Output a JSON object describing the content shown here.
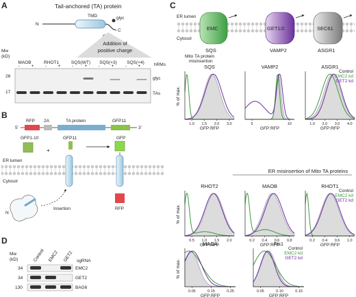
{
  "panel_labels": {
    "a": "A",
    "b": "B",
    "c": "C",
    "d": "D"
  },
  "panel_a": {
    "title": "Tail-anchored (TA) protein",
    "tmd": "TMD",
    "glyc": "glyc",
    "ctd": "CTD",
    "n": "N",
    "c": "C",
    "charge_note": "Addition of positive charge",
    "mw": "Mw",
    "kd": "(kD)",
    "lanes": [
      "MAOB",
      "RHOT1",
      "SQS(WT)",
      "SQS(+3)",
      "SQS(+4)"
    ],
    "hrms_label": "hRMs",
    "hrms_signs": [
      "-",
      "+",
      "-",
      "+",
      "-",
      "+",
      "-",
      "+",
      "-",
      "+"
    ],
    "markers": [
      "26",
      "17"
    ],
    "band_labels": [
      "glyc",
      "TAs"
    ]
  },
  "panel_b": {
    "construct": [
      "RFP",
      "2A",
      "TA protein",
      "GFP11"
    ],
    "five": "5'",
    "three": "3'",
    "gfp1_10": "GFP1-10",
    "gfp11": "GFP11",
    "gfp": "GFP",
    "plus": "+",
    "er_lumen": "ER lumen",
    "cytosol": "Cytosol",
    "insertion": "Insertion",
    "rfp": "RFP",
    "n": "N"
  },
  "panel_c_top": {
    "er_lumen": "ER lumen",
    "cytosol": "Cytosol",
    "complexes": [
      "EMC",
      "GET1/2",
      "SEC61"
    ],
    "substrates": [
      "SQS",
      "VAMP2",
      "ASGR1"
    ],
    "misinsertion_note": "Mito TA protein misinsertion"
  },
  "panel_c_plots": {
    "ylabel": "% of max.",
    "xlabel": "GFP:RFP",
    "legend": [
      "Control",
      "EMC2 kd",
      "GET2 kd"
    ],
    "section_title": "ER misinsertion of Mito TA proteins",
    "colors": {
      "control": "#a99fbf",
      "emc": "#3a9a3a",
      "get": "#6a2f9a"
    },
    "plots": [
      {
        "title": "SQS",
        "ticks": [
          "1.0",
          "1.5",
          "2.0",
          "3.0"
        ],
        "has_legend": false
      },
      {
        "title": "VAMP2",
        "ticks": [
          "5",
          "10"
        ],
        "has_legend": false
      },
      {
        "title": "ASGR1",
        "ticks": [
          "1.0",
          "2.0",
          "3.0",
          "4.0"
        ],
        "has_legend": true
      },
      {
        "title": "RHOT2",
        "ticks": [
          "0.5",
          "1.0",
          "1.5",
          "2.0"
        ],
        "has_legend": false
      },
      {
        "title": "MAOB",
        "ticks": [
          "0.2",
          "0.4",
          "0.6",
          "0.8"
        ],
        "has_legend": false
      },
      {
        "title": "RHOT1",
        "ticks": [
          "0.2",
          "0.4",
          "0.6",
          "1.0"
        ],
        "has_legend": true
      },
      {
        "title": "MAOA",
        "ticks": [
          "0.05",
          "0.15",
          "0.25"
        ],
        "has_legend": false
      },
      {
        "title": "Fis1",
        "ticks": [
          "0.05",
          "0.10",
          "0.15"
        ],
        "has_legend": true
      }
    ]
  },
  "panel_d": {
    "mw": "Mw",
    "kd": "(kD)",
    "lanes": [
      "Control",
      "EMC2",
      "GET2"
    ],
    "sgrna": "sgRNA",
    "markers": [
      "34",
      "34",
      "130"
    ],
    "blots": [
      "EMC2",
      "GET2",
      "BAG6"
    ]
  }
}
